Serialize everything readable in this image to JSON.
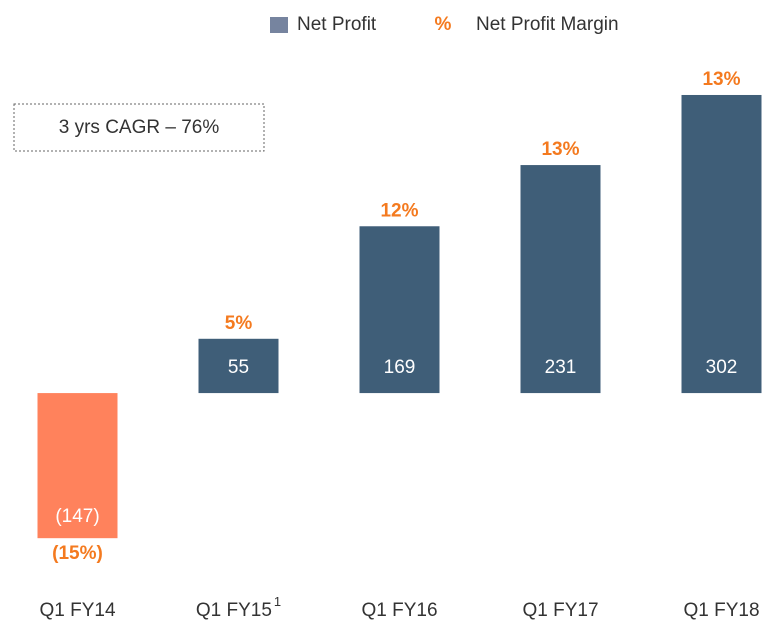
{
  "chart_data": {
    "type": "bar",
    "categories": [
      "Q1 FY14",
      "Q1 FY15",
      "Q1 FY16",
      "Q1 FY17",
      "Q1 FY18"
    ],
    "category_superscripts": [
      null,
      "1",
      null,
      null,
      null
    ],
    "series": [
      {
        "name": "Net Profit",
        "color": "#3f5e78",
        "negative_color": "#ff825c",
        "legend_color": "#76849f",
        "values": [
          -147,
          55,
          169,
          231,
          302
        ],
        "value_labels": [
          "(147)",
          "55",
          "169",
          "231",
          "302"
        ]
      },
      {
        "name": "Net Profit Margin",
        "color": "#f47a1f",
        "marker": "%",
        "values": [
          -15,
          5,
          12,
          13,
          13
        ],
        "value_labels": [
          "(15%)",
          "5%",
          "12%",
          "13%",
          "13%"
        ]
      }
    ],
    "annotation": "3 yrs CAGR – 76%",
    "ylim": [
      -200,
      350
    ],
    "grid": false
  }
}
